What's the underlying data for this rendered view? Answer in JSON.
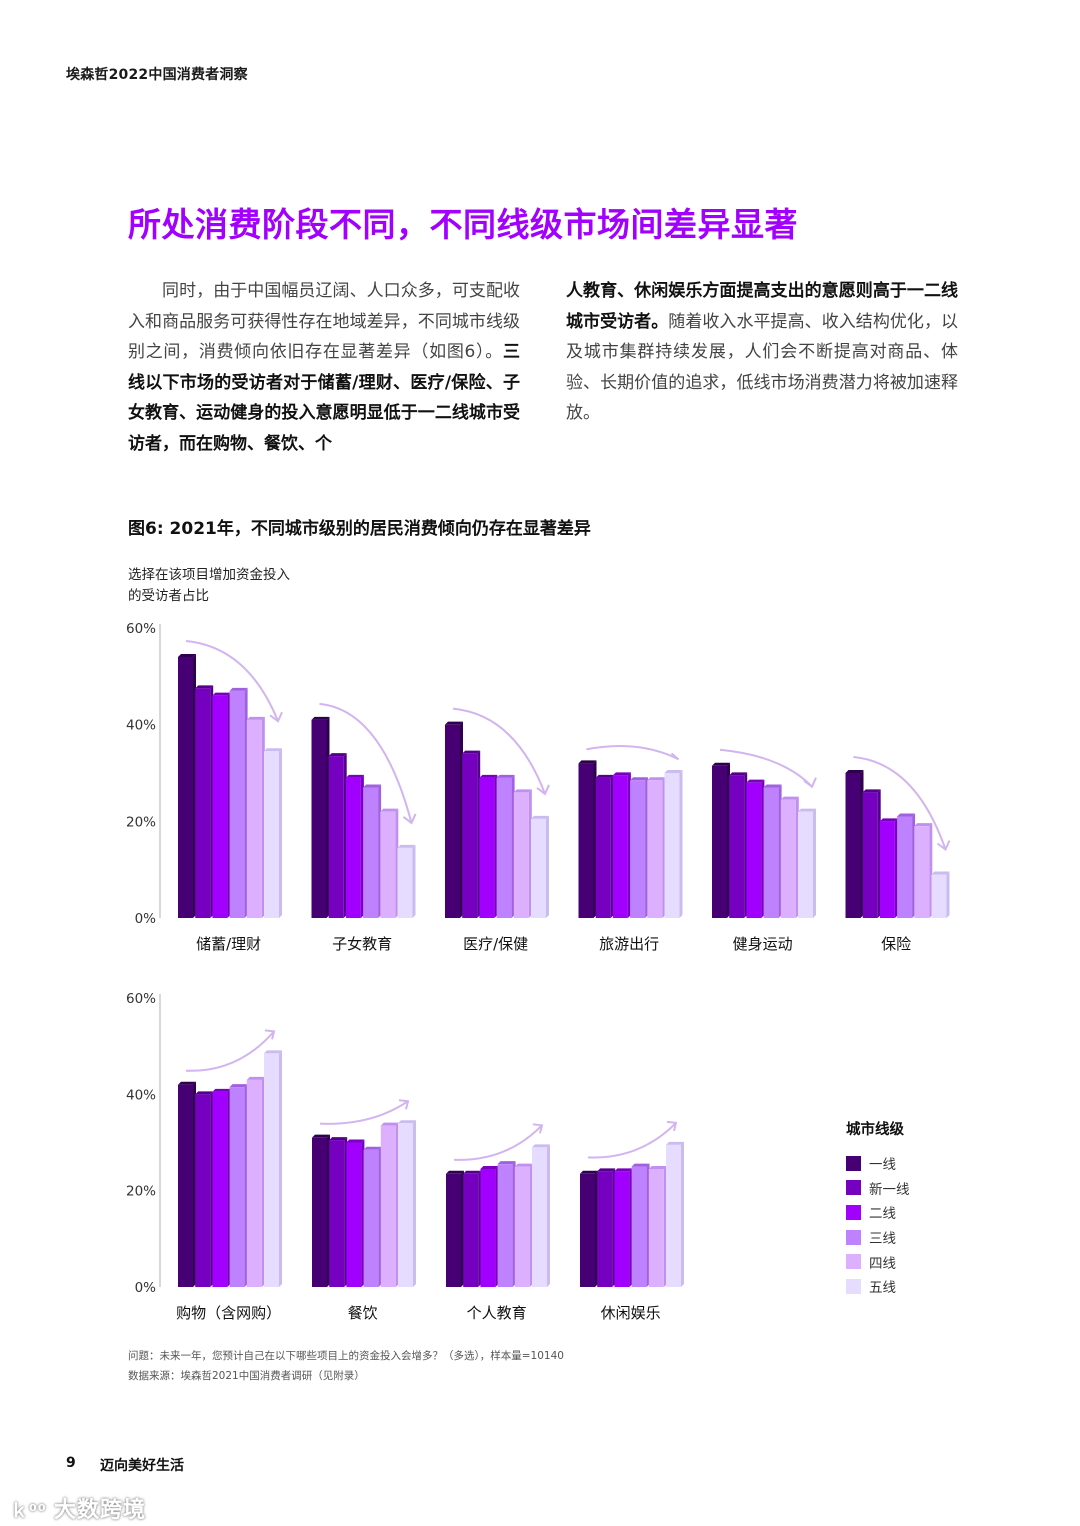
{
  "header": {
    "title": "埃森哲2022中国消费者洞察"
  },
  "section": {
    "title": "所处消费阶段不同，不同线级市场间差异显著"
  },
  "body": {
    "left": {
      "p1": "同时，由于中国幅员辽阔、人口众多，可支配收入和商品服务可获得性存在地域差异，不同城市线级别之间，消费倾向依旧存在显著差异（如图6）。",
      "p1_bold": "三线以下市场的受访者对于储蓄/理财、医疗/保险、子女教育、运动健身的投入意愿明显低于一二线城市受访者，而在购物、餐饮、个"
    },
    "right": {
      "p_bold": "人教育、休闲娱乐方面提高支出的意愿则高于一二线城市受访者。",
      "p_rest": "随着收入水平提高、收入结构优化，以及城市集群持续发展，人们会不断提高对商品、体验、长期价值的追求，低线市场消费潜力将被加速释放。"
    }
  },
  "figure": {
    "title": "图6: 2021年，不同城市级别的居民消费倾向仍存在显著差异",
    "ylabel_line1": "选择在该项目增加资金投入",
    "ylabel_line2": "的受访者占比",
    "legend_title": "城市线级",
    "question": "问题：未来一年，您预计自己在以下哪些项目上的资金投入会增多？（多选），样本量=10140",
    "source": "数据来源：埃森哲2021中国消费者调研（见附录）"
  },
  "colors": {
    "tier1": "#460073",
    "newtier1": "#7500c0",
    "tier2": "#a100ff",
    "tier3": "#be82ff",
    "tier4": "#dcafff",
    "tier5": "#e6dcff",
    "arrow": "#d2b4f0",
    "title": "#a100ff"
  },
  "chart_data": [
    {
      "type": "bar",
      "title": "图6: 2021年，不同城市级别的居民消费倾向仍存在显著差异",
      "xlabel": "",
      "ylabel": "选择在该项目增加资金投入的受访者占比",
      "ylim": [
        0,
        60
      ],
      "yticks": [
        "0%",
        "20%",
        "40%",
        "60%"
      ],
      "grid": false,
      "legend_position": "right",
      "categories": [
        "储蓄/理财",
        "子女教育",
        "医疗/保健",
        "旅游出行",
        "健身运动",
        "保险"
      ],
      "trend": [
        "down",
        "down",
        "down",
        "flat",
        "down",
        "down"
      ],
      "series": [
        {
          "name": "一线",
          "values": [
            54,
            41,
            40,
            32,
            31.5,
            30
          ]
        },
        {
          "name": "新一线",
          "values": [
            47.5,
            33.5,
            34,
            29,
            29.5,
            26
          ]
        },
        {
          "name": "二线",
          "values": [
            46,
            29,
            29,
            29.5,
            28,
            20
          ]
        },
        {
          "name": "三线",
          "values": [
            47,
            27,
            29,
            28.5,
            27,
            21
          ]
        },
        {
          "name": "四线",
          "values": [
            41,
            22,
            26,
            28.5,
            24.5,
            19
          ]
        },
        {
          "name": "五线",
          "values": [
            34.5,
            14.5,
            20.5,
            30,
            22,
            9
          ]
        }
      ]
    },
    {
      "type": "bar",
      "title": "",
      "xlabel": "",
      "ylabel": "选择在该项目增加资金投入的受访者占比",
      "ylim": [
        0,
        60
      ],
      "yticks": [
        "0%",
        "20%",
        "40%",
        "60%"
      ],
      "grid": false,
      "legend_position": "right",
      "categories": [
        "购物（含网购）",
        "餐饮",
        "个人教育",
        "休闲娱乐"
      ],
      "trend": [
        "up",
        "up",
        "up",
        "up"
      ],
      "series": [
        {
          "name": "一线",
          "values": [
            42,
            31,
            23.5,
            23.5
          ]
        },
        {
          "name": "新一线",
          "values": [
            40,
            30.5,
            23.5,
            24
          ]
        },
        {
          "name": "二线",
          "values": [
            40.5,
            30,
            24.5,
            24
          ]
        },
        {
          "name": "三线",
          "values": [
            41.5,
            28.5,
            25.5,
            25
          ]
        },
        {
          "name": "四线",
          "values": [
            43,
            33.5,
            25,
            24.5
          ]
        },
        {
          "name": "五线",
          "values": [
            48.5,
            34,
            29,
            29.5
          ]
        }
      ]
    }
  ],
  "legend": [
    "一线",
    "新一线",
    "二线",
    "三线",
    "四线",
    "五线"
  ],
  "footer": {
    "page": "9",
    "title": "迈向美好生活"
  },
  "watermark": "大数跨境"
}
